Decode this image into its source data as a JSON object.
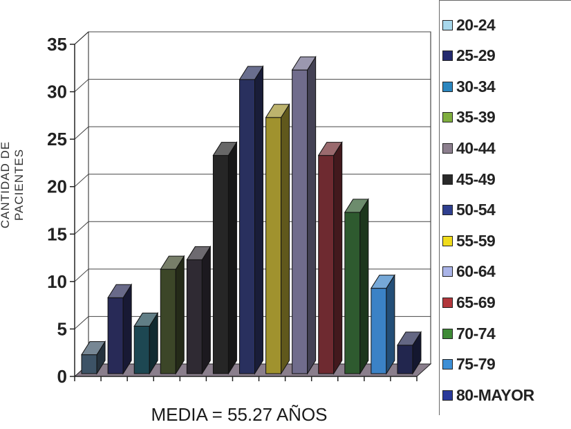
{
  "chart_data": {
    "type": "bar",
    "categories": [
      "20-24",
      "25-29",
      "30-34",
      "35-39",
      "40-44",
      "45-49",
      "50-54",
      "55-59",
      "60-64",
      "65-69",
      "70-74",
      "75-79",
      "80-MAYOR"
    ],
    "values": [
      2,
      8,
      5,
      11,
      12,
      23,
      31,
      27,
      32,
      23,
      17,
      9,
      3
    ],
    "colors": [
      "#3d5366",
      "#282a57",
      "#1d4752",
      "#3c4628",
      "#2f2a33",
      "#262626",
      "#29305e",
      "#a0922e",
      "#706c8c",
      "#6e2a30",
      "#2e5a2f",
      "#3b82c6",
      "#22264e"
    ],
    "xlabel": "MEDIA = 55.27 AÑOS",
    "ylabel": "CANTIDAD DE PACIENTES",
    "ylim": [
      0,
      35
    ],
    "yticks": [
      0,
      5,
      10,
      15,
      20,
      25,
      30,
      35
    ],
    "grid": true,
    "legend_position": "right",
    "legend": [
      {
        "label": "20-24",
        "color": "#a8d8ec"
      },
      {
        "label": "25-29",
        "color": "#232a6e"
      },
      {
        "label": "30-34",
        "color": "#2b86bf"
      },
      {
        "label": "35-39",
        "color": "#7fae3f"
      },
      {
        "label": "40-44",
        "color": "#8c7f8e"
      },
      {
        "label": "45-49",
        "color": "#2a2a2a"
      },
      {
        "label": "50-54",
        "color": "#2f3f8f"
      },
      {
        "label": "55-59",
        "color": "#f0dc1c"
      },
      {
        "label": "60-64",
        "color": "#aab4e8"
      },
      {
        "label": "65-69",
        "color": "#b2373c"
      },
      {
        "label": "70-74",
        "color": "#3e8a36"
      },
      {
        "label": "75-79",
        "color": "#3d8fd6"
      },
      {
        "label": "80-MAYOR",
        "color": "#2a3a9a"
      }
    ]
  }
}
